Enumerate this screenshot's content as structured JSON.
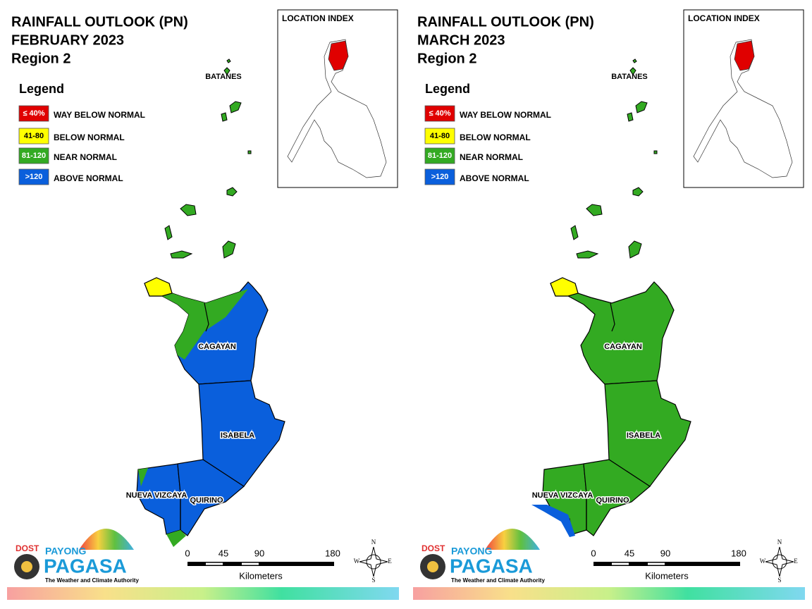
{
  "panels": [
    {
      "title": [
        "RAINFALL OUTLOOK (PN)",
        "FEBRUARY 2023",
        "Region 2"
      ],
      "legend": {
        "title": "Legend",
        "items": [
          {
            "label": "≤ 40%",
            "text": "WAY BELOW NORMAL",
            "color": "#e00000"
          },
          {
            "label": "41-80",
            "text": "BELOW NORMAL",
            "color": "#ffff00"
          },
          {
            "label": "81-120",
            "text": "NEAR NORMAL",
            "color": "#33aa22"
          },
          {
            "label": ">120",
            "text": "ABOVE NORMAL",
            "color": "#0a5fdc"
          }
        ]
      },
      "location_index": "LOCATION INDEX",
      "islands_label": "BATANES",
      "provinces": [
        {
          "label": "CAGAYAN",
          "fill": "#0a5fdc"
        },
        {
          "label": "ISABELA",
          "fill": "#0a5fdc"
        },
        {
          "label": "NUEVA VIZCAYA",
          "fill": "#0a5fdc"
        },
        {
          "label": "QUIRINO",
          "fill": "#0a5fdc"
        }
      ],
      "scale": {
        "ticks": [
          "0",
          "45",
          "90",
          "180"
        ],
        "unit": "Kilometers"
      },
      "compass": [
        "N",
        "E",
        "S",
        "W"
      ],
      "logo": {
        "agency": "DOST",
        "brand_top": "PAYONG",
        "brand": "PAGASA",
        "tagline": "The Weather and Climate Authority"
      }
    },
    {
      "title": [
        "RAINFALL OUTLOOK (PN)",
        "MARCH 2023",
        "Region 2"
      ],
      "legend": {
        "title": "Legend",
        "items": [
          {
            "label": "≤ 40%",
            "text": "WAY BELOW NORMAL",
            "color": "#e00000"
          },
          {
            "label": "41-80",
            "text": "BELOW NORMAL",
            "color": "#ffff00"
          },
          {
            "label": "81-120",
            "text": "NEAR NORMAL",
            "color": "#33aa22"
          },
          {
            "label": ">120",
            "text": "ABOVE NORMAL",
            "color": "#0a5fdc"
          }
        ]
      },
      "location_index": "LOCATION INDEX",
      "islands_label": "BATANES",
      "provinces": [
        {
          "label": "CAGAYAN",
          "fill": "#33aa22"
        },
        {
          "label": "ISABELA",
          "fill": "#33aa22"
        },
        {
          "label": "NUEVA VIZCAYA",
          "fill": "#33aa22"
        },
        {
          "label": "QUIRINO",
          "fill": "#33aa22"
        }
      ],
      "scale": {
        "ticks": [
          "0",
          "45",
          "90",
          "180"
        ],
        "unit": "Kilometers"
      },
      "compass": [
        "N",
        "E",
        "S",
        "W"
      ],
      "logo": {
        "agency": "DOST",
        "brand_top": "PAYONG",
        "brand": "PAGASA",
        "tagline": "The Weather and Climate Authority"
      }
    }
  ]
}
